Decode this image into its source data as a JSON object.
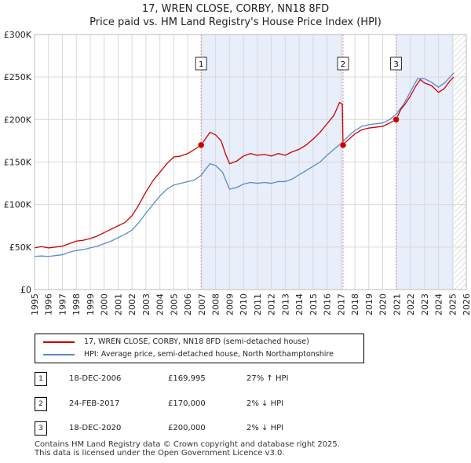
{
  "title_line1": "17, WREN CLOSE, CORBY, NN18 8FD",
  "title_line2": "Price paid vs. HM Land Registry's House Price Index (HPI)",
  "colors": {
    "red": "#cc0000",
    "blue": "#5b8ac6",
    "shade": "#e8eefa",
    "hatch": "#c8c8c8",
    "grid": "#d9d9d9",
    "vline": "#e88aa0"
  },
  "legend": {
    "property_label": "17, WREN CLOSE, CORBY, NN18 8FD (semi-detached house)",
    "hpi_label": "HPI: Average price, semi-detached house, North Northamptonshire"
  },
  "transactions": [
    {
      "num": "1",
      "date": "18-DEC-2006",
      "price": "£169,995",
      "hpi": "27% ↑ HPI"
    },
    {
      "num": "2",
      "date": "24-FEB-2017",
      "price": "£170,000",
      "hpi": "2% ↓ HPI"
    },
    {
      "num": "3",
      "date": "18-DEC-2020",
      "price": "£200,000",
      "hpi": "2% ↓ HPI"
    }
  ],
  "footer_line1": "Contains HM Land Registry data © Crown copyright and database right 2025.",
  "footer_line2": "This data is licensed under the Open Government Licence v3.0.",
  "chart_data": {
    "type": "line",
    "title": "17, WREN CLOSE, CORBY, NN18 8FD — Price paid vs. HM Land Registry's House Price Index (HPI)",
    "xlabel": "",
    "ylabel": "",
    "xlim": [
      1995,
      2026
    ],
    "ylim": [
      0,
      300000
    ],
    "x_ticks": [
      "1995",
      "1996",
      "1997",
      "1998",
      "1999",
      "2000",
      "2001",
      "2002",
      "2003",
      "2004",
      "2005",
      "2006",
      "2007",
      "2008",
      "2009",
      "2010",
      "2011",
      "2012",
      "2013",
      "2014",
      "2015",
      "2016",
      "2017",
      "2018",
      "2019",
      "2020",
      "2021",
      "2022",
      "2023",
      "2024",
      "2025",
      "2026"
    ],
    "y_ticks": [
      {
        "value": 0,
        "label": "£0"
      },
      {
        "value": 50000,
        "label": "£50K"
      },
      {
        "value": 100000,
        "label": "£100K"
      },
      {
        "value": 150000,
        "label": "£150K"
      },
      {
        "value": 200000,
        "label": "£200K"
      },
      {
        "value": 250000,
        "label": "£250K"
      },
      {
        "value": 300000,
        "label": "£300K"
      }
    ],
    "grid": true,
    "shaded_ranges": [
      [
        2006.96,
        2017.15
      ],
      [
        2020.96,
        2025.1
      ]
    ],
    "hatched_range": [
      2025.1,
      2026
    ],
    "markers": [
      {
        "label": "1",
        "x": 2006.96,
        "y": 169995
      },
      {
        "label": "2",
        "x": 2017.15,
        "y": 170000
      },
      {
        "label": "3",
        "x": 2020.96,
        "y": 200000
      }
    ],
    "series": [
      {
        "name": "17, WREN CLOSE, CORBY, NN18 8FD (semi-detached house)",
        "color": "#cc0000",
        "points": [
          [
            1995,
            49000
          ],
          [
            1995.5,
            50500
          ],
          [
            1996,
            49000
          ],
          [
            1996.5,
            50000
          ],
          [
            1997,
            51000
          ],
          [
            1997.5,
            54000
          ],
          [
            1998,
            57000
          ],
          [
            1998.5,
            58000
          ],
          [
            1999,
            60000
          ],
          [
            1999.5,
            63000
          ],
          [
            2000,
            67000
          ],
          [
            2000.5,
            71000
          ],
          [
            2001,
            75000
          ],
          [
            2001.5,
            79000
          ],
          [
            2002,
            87000
          ],
          [
            2002.5,
            100000
          ],
          [
            2003,
            115000
          ],
          [
            2003.5,
            128000
          ],
          [
            2004,
            138000
          ],
          [
            2004.5,
            148000
          ],
          [
            2005,
            156000
          ],
          [
            2005.5,
            157000
          ],
          [
            2006,
            160000
          ],
          [
            2006.5,
            165000
          ],
          [
            2006.96,
            169995
          ],
          [
            2007.3,
            178000
          ],
          [
            2007.6,
            185000
          ],
          [
            2008,
            182000
          ],
          [
            2008.4,
            175000
          ],
          [
            2008.7,
            160000
          ],
          [
            2009,
            148000
          ],
          [
            2009.5,
            151000
          ],
          [
            2010,
            157000
          ],
          [
            2010.5,
            160000
          ],
          [
            2011,
            158000
          ],
          [
            2011.5,
            159000
          ],
          [
            2012,
            157000
          ],
          [
            2012.5,
            160000
          ],
          [
            2013,
            158000
          ],
          [
            2013.5,
            162000
          ],
          [
            2014,
            165000
          ],
          [
            2014.5,
            170000
          ],
          [
            2015,
            177000
          ],
          [
            2015.5,
            185000
          ],
          [
            2016,
            195000
          ],
          [
            2016.5,
            205000
          ],
          [
            2016.9,
            220000
          ],
          [
            2017.1,
            218000
          ],
          [
            2017.15,
            170000
          ],
          [
            2017.5,
            176000
          ],
          [
            2018,
            183000
          ],
          [
            2018.5,
            188000
          ],
          [
            2019,
            190000
          ],
          [
            2019.5,
            191000
          ],
          [
            2020,
            192000
          ],
          [
            2020.5,
            196000
          ],
          [
            2020.96,
            200000
          ],
          [
            2021.3,
            212000
          ],
          [
            2021.6,
            218000
          ],
          [
            2022,
            228000
          ],
          [
            2022.4,
            240000
          ],
          [
            2022.7,
            247000
          ],
          [
            2023,
            243000
          ],
          [
            2023.5,
            240000
          ],
          [
            2024,
            232000
          ],
          [
            2024.4,
            236000
          ],
          [
            2024.8,
            245000
          ],
          [
            2025.1,
            250000
          ]
        ]
      },
      {
        "name": "HPI: Average price, semi-detached house, North Northamptonshire",
        "color": "#5b8ac6",
        "points": [
          [
            1995,
            39000
          ],
          [
            1995.5,
            39500
          ],
          [
            1996,
            39000
          ],
          [
            1996.5,
            40000
          ],
          [
            1997,
            41000
          ],
          [
            1997.5,
            44000
          ],
          [
            1998,
            46000
          ],
          [
            1998.5,
            47000
          ],
          [
            1999,
            49000
          ],
          [
            1999.5,
            51000
          ],
          [
            2000,
            54000
          ],
          [
            2000.5,
            57000
          ],
          [
            2001,
            61000
          ],
          [
            2001.5,
            65000
          ],
          [
            2002,
            70000
          ],
          [
            2002.5,
            79000
          ],
          [
            2003,
            90000
          ],
          [
            2003.5,
            100000
          ],
          [
            2004,
            110000
          ],
          [
            2004.5,
            118000
          ],
          [
            2005,
            123000
          ],
          [
            2005.5,
            125000
          ],
          [
            2006,
            127000
          ],
          [
            2006.5,
            129000
          ],
          [
            2007,
            135000
          ],
          [
            2007.3,
            142000
          ],
          [
            2007.6,
            148000
          ],
          [
            2008,
            146000
          ],
          [
            2008.5,
            138000
          ],
          [
            2009,
            118000
          ],
          [
            2009.5,
            120000
          ],
          [
            2010,
            124000
          ],
          [
            2010.5,
            126000
          ],
          [
            2011,
            125000
          ],
          [
            2011.5,
            126000
          ],
          [
            2012,
            125000
          ],
          [
            2012.5,
            127000
          ],
          [
            2013,
            127000
          ],
          [
            2013.5,
            130000
          ],
          [
            2014,
            135000
          ],
          [
            2014.5,
            140000
          ],
          [
            2015,
            145000
          ],
          [
            2015.5,
            150000
          ],
          [
            2016,
            158000
          ],
          [
            2016.5,
            165000
          ],
          [
            2017,
            172000
          ],
          [
            2017.5,
            180000
          ],
          [
            2018,
            187000
          ],
          [
            2018.5,
            192000
          ],
          [
            2019,
            194000
          ],
          [
            2019.5,
            195000
          ],
          [
            2020,
            196000
          ],
          [
            2020.5,
            200000
          ],
          [
            2021,
            207000
          ],
          [
            2021.5,
            218000
          ],
          [
            2022,
            233000
          ],
          [
            2022.5,
            248000
          ],
          [
            2023,
            248000
          ],
          [
            2023.5,
            244000
          ],
          [
            2024,
            238000
          ],
          [
            2024.5,
            244000
          ],
          [
            2025,
            253000
          ],
          [
            2025.1,
            255000
          ]
        ]
      }
    ]
  }
}
